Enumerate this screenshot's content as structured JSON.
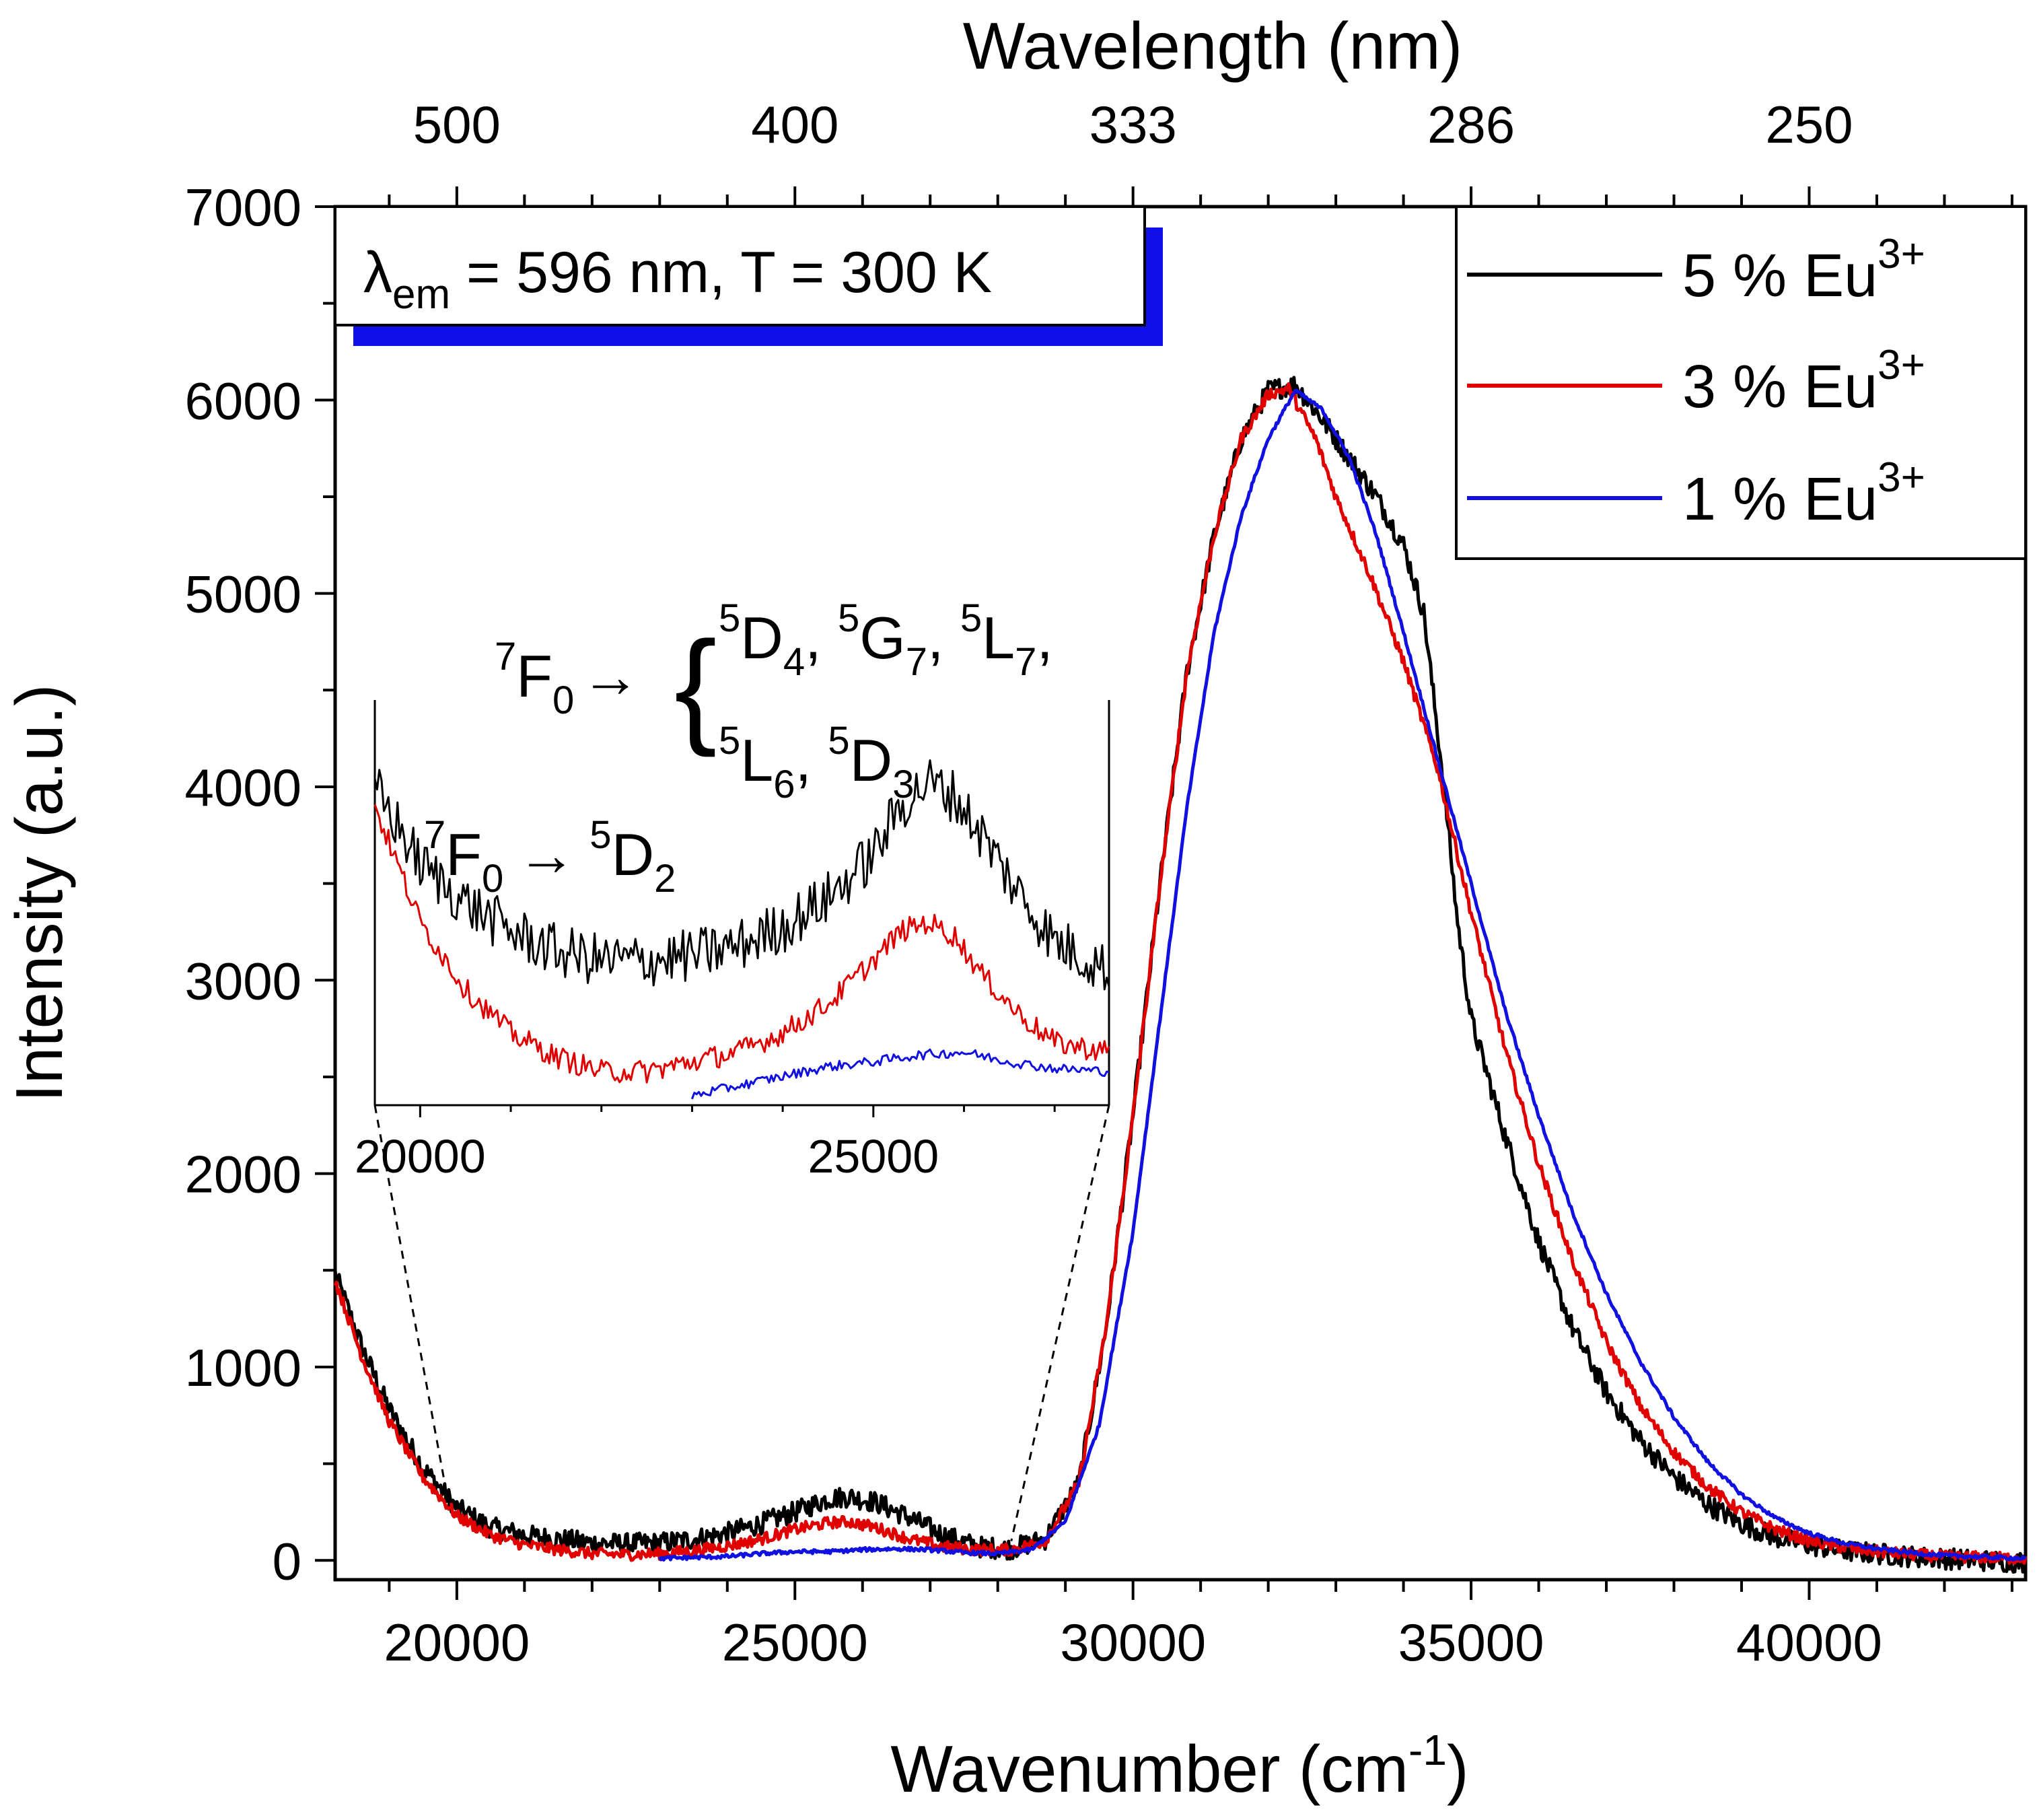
{
  "chart_data": {
    "type": "line",
    "xlabel": "Wavenumber (cm",
    "xlabel_sup": "-1",
    "xlabel_end": ")",
    "ylabel": "Intensity (a.u.)",
    "top_xlabel": "Wavelength (nm)",
    "xlim": [
      18200,
      43200
    ],
    "ylim": [
      -100,
      7000
    ],
    "x_ticks": [
      20000,
      25000,
      30000,
      35000,
      40000
    ],
    "y_ticks": [
      0,
      1000,
      2000,
      3000,
      4000,
      5000,
      6000,
      7000
    ],
    "top_ticks": [
      {
        "label": "500",
        "wavenumber": 20000
      },
      {
        "label": "400",
        "wavenumber": 25000
      },
      {
        "label": "333",
        "wavenumber": 30000
      },
      {
        "label": "286",
        "wavenumber": 35000
      },
      {
        "label": "250",
        "wavenumber": 40000
      }
    ],
    "condition_label": {
      "lambda": "λ",
      "sub": "em",
      "rest": " = 596 nm, T = 300 K"
    },
    "series": [
      {
        "name": "5 % Eu",
        "sup": "3+",
        "color": "#000000",
        "noise": 55,
        "points": [
          [
            18200,
            1480
          ],
          [
            18600,
            1100
          ],
          [
            19000,
            780
          ],
          [
            19500,
            480
          ],
          [
            20000,
            270
          ],
          [
            20500,
            170
          ],
          [
            21000,
            130
          ],
          [
            21500,
            110
          ],
          [
            22000,
            90
          ],
          [
            22500,
            85
          ],
          [
            23000,
            90
          ],
          [
            23500,
            110
          ],
          [
            24000,
            140
          ],
          [
            24500,
            190
          ],
          [
            25000,
            250
          ],
          [
            25500,
            320
          ],
          [
            25800,
            330
          ],
          [
            26200,
            300
          ],
          [
            26700,
            220
          ],
          [
            27200,
            130
          ],
          [
            27700,
            70
          ],
          [
            28200,
            60
          ],
          [
            28700,
            110
          ],
          [
            29200,
            400
          ],
          [
            29600,
            1200
          ],
          [
            30000,
            2300
          ],
          [
            30400,
            3500
          ],
          [
            30800,
            4600
          ],
          [
            31200,
            5300
          ],
          [
            31600,
            5800
          ],
          [
            32000,
            6050
          ],
          [
            32400,
            6080
          ],
          [
            32800,
            5900
          ],
          [
            33200,
            5700
          ],
          [
            33600,
            5500
          ],
          [
            34000,
            5250
          ],
          [
            34300,
            4900
          ],
          [
            34600,
            4000
          ],
          [
            34800,
            3300
          ],
          [
            35000,
            2800
          ],
          [
            35500,
            2200
          ],
          [
            36000,
            1650
          ],
          [
            36500,
            1200
          ],
          [
            37000,
            870
          ],
          [
            37500,
            620
          ],
          [
            38000,
            430
          ],
          [
            38500,
            290
          ],
          [
            39000,
            190
          ],
          [
            39500,
            120
          ],
          [
            40000,
            80
          ],
          [
            40500,
            50
          ],
          [
            41000,
            35
          ],
          [
            41500,
            20
          ],
          [
            42000,
            10
          ],
          [
            42500,
            0
          ],
          [
            43200,
            -10
          ]
        ]
      },
      {
        "name": "3 % Eu",
        "sup": "3+",
        "color": "#e00000",
        "noise": 30,
        "points": [
          [
            18200,
            1450
          ],
          [
            18600,
            1050
          ],
          [
            19000,
            720
          ],
          [
            19500,
            430
          ],
          [
            20000,
            230
          ],
          [
            20500,
            130
          ],
          [
            21000,
            80
          ],
          [
            21500,
            55
          ],
          [
            22000,
            35
          ],
          [
            22500,
            30
          ],
          [
            23000,
            35
          ],
          [
            23500,
            50
          ],
          [
            24000,
            75
          ],
          [
            24500,
            110
          ],
          [
            25000,
            160
          ],
          [
            25500,
            195
          ],
          [
            25800,
            200
          ],
          [
            26200,
            170
          ],
          [
            26700,
            110
          ],
          [
            27200,
            70
          ],
          [
            27700,
            55
          ],
          [
            28200,
            55
          ],
          [
            28700,
            100
          ],
          [
            29200,
            400
          ],
          [
            29600,
            1200
          ],
          [
            30000,
            2300
          ],
          [
            30400,
            3500
          ],
          [
            30800,
            4600
          ],
          [
            31200,
            5300
          ],
          [
            31600,
            5800
          ],
          [
            32000,
            6030
          ],
          [
            32300,
            6060
          ],
          [
            32700,
            5800
          ],
          [
            33000,
            5500
          ],
          [
            33500,
            5100
          ],
          [
            34000,
            4650
          ],
          [
            34500,
            4100
          ],
          [
            35000,
            3350
          ],
          [
            35500,
            2650
          ],
          [
            36000,
            2050
          ],
          [
            36500,
            1550
          ],
          [
            37000,
            1130
          ],
          [
            37500,
            800
          ],
          [
            38000,
            560
          ],
          [
            38500,
            380
          ],
          [
            39000,
            250
          ],
          [
            39500,
            160
          ],
          [
            40000,
            100
          ],
          [
            40500,
            65
          ],
          [
            41000,
            45
          ],
          [
            41500,
            30
          ],
          [
            42000,
            20
          ],
          [
            43200,
            10
          ]
        ]
      },
      {
        "name": "1 % Eu",
        "sup": "3+",
        "color": "#1010e0",
        "noise": 10,
        "points": [
          [
            23000,
            10
          ],
          [
            23500,
            15
          ],
          [
            24000,
            20
          ],
          [
            24500,
            35
          ],
          [
            25000,
            45
          ],
          [
            25500,
            45
          ],
          [
            26000,
            55
          ],
          [
            26500,
            60
          ],
          [
            27000,
            55
          ],
          [
            27500,
            40
          ],
          [
            28000,
            35
          ],
          [
            28500,
            55
          ],
          [
            29000,
            200
          ],
          [
            29500,
            700
          ],
          [
            30000,
            1700
          ],
          [
            30400,
            2800
          ],
          [
            30800,
            3900
          ],
          [
            31200,
            4800
          ],
          [
            31600,
            5400
          ],
          [
            32000,
            5800
          ],
          [
            32400,
            6050
          ],
          [
            32800,
            5950
          ],
          [
            33200,
            5700
          ],
          [
            33600,
            5300
          ],
          [
            34000,
            4800
          ],
          [
            34500,
            4150
          ],
          [
            35000,
            3500
          ],
          [
            35500,
            2850
          ],
          [
            36000,
            2300
          ],
          [
            36500,
            1800
          ],
          [
            37000,
            1380
          ],
          [
            37500,
            1030
          ],
          [
            38000,
            740
          ],
          [
            38500,
            510
          ],
          [
            39000,
            340
          ],
          [
            39500,
            220
          ],
          [
            40000,
            140
          ],
          [
            40500,
            90
          ],
          [
            41000,
            60
          ],
          [
            41500,
            40
          ],
          [
            42000,
            25
          ],
          [
            43200,
            10
          ]
        ]
      }
    ],
    "inset": {
      "xlim": [
        19500,
        27600
      ],
      "ylim": [
        0,
        420
      ],
      "x_ticks": [
        20000,
        25000
      ],
      "zoom_source": {
        "x_start": 19900,
        "x_end": 28200,
        "y": 0
      },
      "annotation_top": {
        "term": "F",
        "term_pre": "7",
        "term_sub": "0",
        "arrow": "→",
        "brace": "{"
      },
      "brace_line1": [
        {
          "pre": "5",
          "base": "D",
          "sub": "4",
          "tail": ", "
        },
        {
          "pre": "5",
          "base": "G",
          "sub": "7",
          "tail": ", "
        },
        {
          "pre": "5",
          "base": "L",
          "sub": "7",
          "tail": ","
        }
      ],
      "brace_line2": [
        {
          "pre": "5",
          "base": "L",
          "sub": "6",
          "tail": ", "
        },
        {
          "pre": "5",
          "base": "D",
          "sub": "3",
          "tail": ""
        }
      ],
      "annotation_bottom": {
        "term_pre": "7",
        "term": "F",
        "term_sub": "0",
        "arrow": "→",
        "final_pre": "5",
        "final": "D",
        "final_sub": "2"
      },
      "series": [
        {
          "color": "#000000",
          "noise": 28,
          "points": [
            [
              19500,
              330
            ],
            [
              20000,
              250
            ],
            [
              20500,
              210
            ],
            [
              21000,
              180
            ],
            [
              21500,
              160
            ],
            [
              22000,
              150
            ],
            [
              22500,
              150
            ],
            [
              23000,
              155
            ],
            [
              23500,
              165
            ],
            [
              24000,
              185
            ],
            [
              24500,
              215
            ],
            [
              25000,
              260
            ],
            [
              25300,
              310
            ],
            [
              25600,
              335
            ],
            [
              25900,
              320
            ],
            [
              26200,
              280
            ],
            [
              26600,
              220
            ],
            [
              27000,
              170
            ],
            [
              27600,
              140
            ]
          ]
        },
        {
          "color": "#e00000",
          "noise": 12,
          "points": [
            [
              19500,
              310
            ],
            [
              20000,
              190
            ],
            [
              20500,
              120
            ],
            [
              21000,
              75
            ],
            [
              21500,
              50
            ],
            [
              22000,
              35
            ],
            [
              22500,
              35
            ],
            [
              23000,
              45
            ],
            [
              23500,
              55
            ],
            [
              24000,
              75
            ],
            [
              24500,
              105
            ],
            [
              25000,
              150
            ],
            [
              25300,
              180
            ],
            [
              25600,
              190
            ],
            [
              25900,
              175
            ],
            [
              26200,
              135
            ],
            [
              26600,
              95
            ],
            [
              27000,
              65
            ],
            [
              27600,
              55
            ]
          ]
        },
        {
          "color": "#1010e0",
          "noise": 5,
          "points": [
            [
              23000,
              10
            ],
            [
              23500,
              20
            ],
            [
              24000,
              30
            ],
            [
              24500,
              40
            ],
            [
              25000,
              45
            ],
            [
              25500,
              52
            ],
            [
              26000,
              55
            ],
            [
              26500,
              45
            ],
            [
              27000,
              38
            ],
            [
              27600,
              35
            ]
          ]
        }
      ]
    }
  }
}
